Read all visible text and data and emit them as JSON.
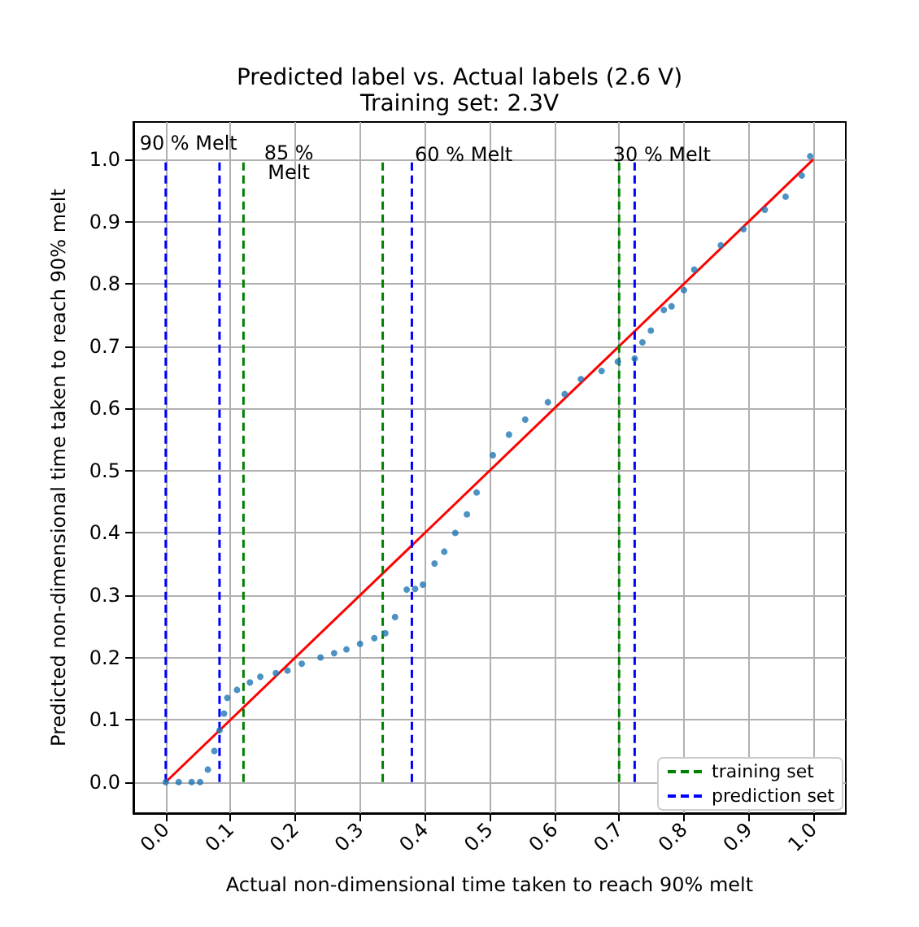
{
  "chart_data": {
    "type": "scatter",
    "title": "Predicted label vs. Actual labels (2.6 V)",
    "subtitle": "Training set: 2.3V",
    "xlabel": "Actual non-dimensional time taken to reach 90% melt",
    "ylabel": "Predicted non-dimensional time taken to reach 90% melt",
    "x": [
      0,
      0.02,
      0.04,
      0.053,
      0.065,
      0.075,
      0.083,
      0.09,
      0.095,
      0.11,
      0.13,
      0.146,
      0.17,
      0.188,
      0.21,
      0.239,
      0.26,
      0.279,
      0.3,
      0.322,
      0.339,
      0.354,
      0.372,
      0.385,
      0.397,
      0.415,
      0.43,
      0.447,
      0.465,
      0.48,
      0.505,
      0.53,
      0.555,
      0.59,
      0.616,
      0.641,
      0.673,
      0.698,
      0.724,
      0.736,
      0.749,
      0.769,
      0.781,
      0.8,
      0.816,
      0.857,
      0.892,
      0.925,
      0.957,
      0.982,
      0.995
    ],
    "series": [
      {
        "type": "scatter",
        "color": "#1f77b4",
        "marker": "circle",
        "values": [
          0,
          0,
          0,
          0,
          0.02,
          0.05,
          0.083,
          0.11,
          0.135,
          0.148,
          0.16,
          0.169,
          0.175,
          0.179,
          0.19,
          0.2,
          0.207,
          0.213,
          0.222,
          0.231,
          0.239,
          0.265,
          0.309,
          0.31,
          0.317,
          0.351,
          0.37,
          0.4,
          0.43,
          0.465,
          0.525,
          0.558,
          0.582,
          0.61,
          0.623,
          0.647,
          0.66,
          0.675,
          0.68,
          0.706,
          0.725,
          0.758,
          0.764,
          0.79,
          0.823,
          0.862,
          0.888,
          0.919,
          0.94,
          0.974,
          1.005
        ]
      },
      {
        "type": "line",
        "color": "#ff0000",
        "marker": "none",
        "line_style": "solid",
        "x": [
          0,
          1
        ],
        "values": [
          0,
          1
        ]
      },
      {
        "type": "line",
        "name": "training set",
        "color": "#008000",
        "marker": "none",
        "line_style": "dashed",
        "x": [
          0.12,
          0.12,
          null,
          0.335,
          0.335,
          null,
          0.7,
          0.7
        ],
        "values": [
          0,
          1,
          null,
          0,
          1,
          null,
          0,
          1
        ]
      },
      {
        "type": "line",
        "name": "prediction set",
        "color": "#0000ff",
        "marker": "none",
        "line_style": "dashed",
        "x": [
          0,
          0,
          null,
          0.083,
          0.083,
          null,
          0.38,
          0.38,
          null,
          0.724,
          0.724
        ],
        "values": [
          0,
          1,
          null,
          0,
          1,
          null,
          0,
          1,
          null,
          0,
          1
        ]
      }
    ],
    "annotations": [
      "90 % Melt",
      "85 %\nMelt",
      "60 % Melt",
      "30 % Melt"
    ],
    "xlim": [
      -0.05,
      1.05
    ],
    "ylim": [
      -0.05,
      1.06
    ],
    "xticks": [
      {
        "value": 0,
        "label": "0.0"
      },
      0.1,
      0.2,
      0.3,
      0.4,
      0.5,
      0.6,
      0.7,
      0.8,
      0.9,
      {
        "value": 1,
        "label": "1.0"
      }
    ],
    "yticks": [
      {
        "value": 0,
        "label": "0.0"
      },
      0.1,
      0.2,
      0.3,
      0.4,
      0.5,
      0.6,
      0.7,
      0.8,
      0.9,
      {
        "value": 1,
        "label": "1.0"
      }
    ],
    "grid": true,
    "legend": "bottom right"
  }
}
